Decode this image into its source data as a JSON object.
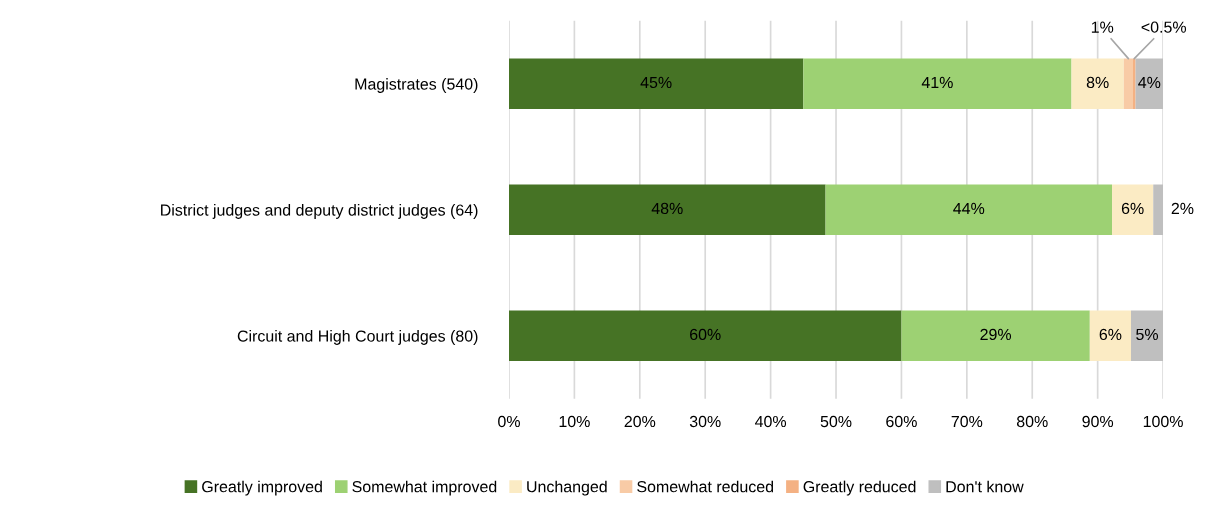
{
  "chart_data": {
    "type": "bar",
    "orientation": "horizontal",
    "stacked": true,
    "categories": [
      "Magistrates (540)",
      "District judges and deputy district judges (64)",
      "Circuit and High Court judges (80)"
    ],
    "series": [
      {
        "name": "Greatly improved",
        "color": "#467325",
        "values": [
          45,
          48.4,
          60
        ],
        "value_labels": [
          "45%",
          "48%",
          "60%"
        ]
      },
      {
        "name": "Somewhat improved",
        "color": "#9dd173",
        "values": [
          41,
          43.8,
          28.8
        ],
        "value_labels": [
          "41%",
          "44%",
          "29%"
        ]
      },
      {
        "name": "Unchanged",
        "color": "#fbebc4",
        "values": [
          8,
          6.3,
          6.3
        ],
        "value_labels": [
          "8%",
          "6%",
          "6%"
        ]
      },
      {
        "name": "Somewhat reduced",
        "color": "#f8cba6",
        "values": [
          1.4,
          null,
          null
        ],
        "value_labels": [
          "1%",
          null,
          null
        ]
      },
      {
        "name": "Greatly reduced",
        "color": "#f4b183",
        "values": [
          0.4,
          null,
          null
        ],
        "value_labels": [
          "<0.5%",
          null,
          null
        ]
      },
      {
        "name": "Don't know",
        "color": "#bfbfbf",
        "values": [
          4.2,
          1.5,
          4.9
        ],
        "value_labels": [
          "4%",
          "2%",
          "5%"
        ]
      }
    ],
    "xlim": [
      0,
      100
    ],
    "xticks": [
      {
        "value": 0,
        "label": "0%"
      },
      {
        "value": 10,
        "label": "10%"
      },
      {
        "value": 20,
        "label": "20%"
      },
      {
        "value": 30,
        "label": "30%"
      },
      {
        "value": 40,
        "label": "40%"
      },
      {
        "value": 50,
        "label": "50%"
      },
      {
        "value": 60,
        "label": "60%"
      },
      {
        "value": 70,
        "label": "70%"
      },
      {
        "value": 80,
        "label": "80%"
      },
      {
        "value": 90,
        "label": "90%"
      },
      {
        "value": 100,
        "label": "100%"
      }
    ],
    "grid": "x",
    "legend": "bottom"
  }
}
